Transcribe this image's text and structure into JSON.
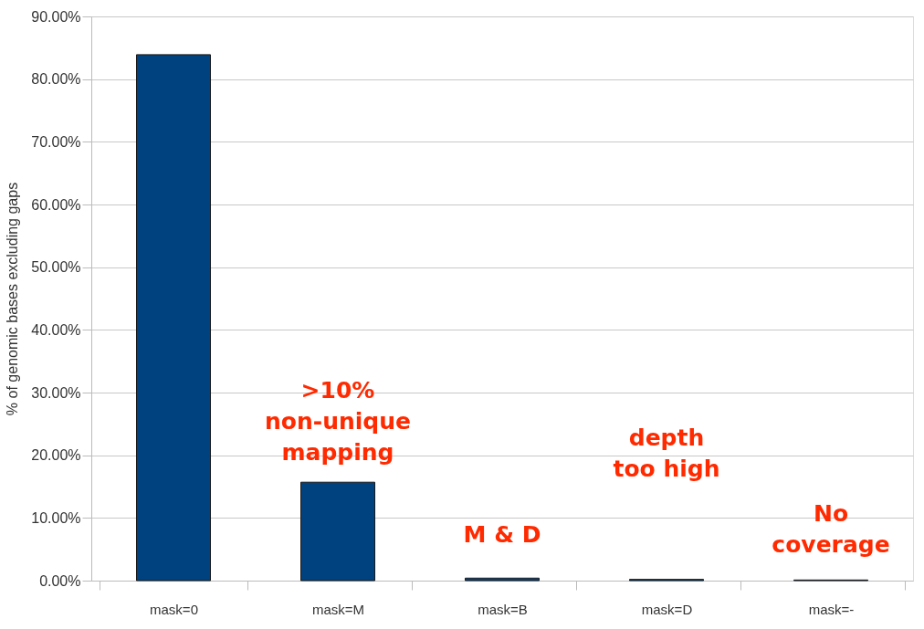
{
  "chart_data": {
    "type": "bar",
    "ylabel": "% of genomic bases excluding gaps",
    "categories": [
      "mask=0",
      "mask=M",
      "mask=B",
      "mask=D",
      "mask=-"
    ],
    "values": [
      83.9,
      15.7,
      0.4,
      0.2,
      0.1
    ],
    "color": "#00427f",
    "ylim": [
      0,
      90
    ],
    "yticks": [
      {
        "value": 0,
        "label": "0.00%"
      },
      {
        "value": 10,
        "label": "10.00%"
      },
      {
        "value": 20,
        "label": "20.00%"
      },
      {
        "value": 30,
        "label": "30.00%"
      },
      {
        "value": 40,
        "label": "40.00%"
      },
      {
        "value": 50,
        "label": "50.00%"
      },
      {
        "value": 60,
        "label": "60.00%"
      },
      {
        "value": 70,
        "label": "70.00%"
      },
      {
        "value": 80,
        "label": "80.00%"
      },
      {
        "value": 90,
        "label": "90.00%"
      }
    ],
    "grid": "y",
    "annotations": [
      ">10%\nnon-unique\nmapping",
      "M & D",
      "depth\ntoo high",
      "No\ncoverage"
    ]
  }
}
